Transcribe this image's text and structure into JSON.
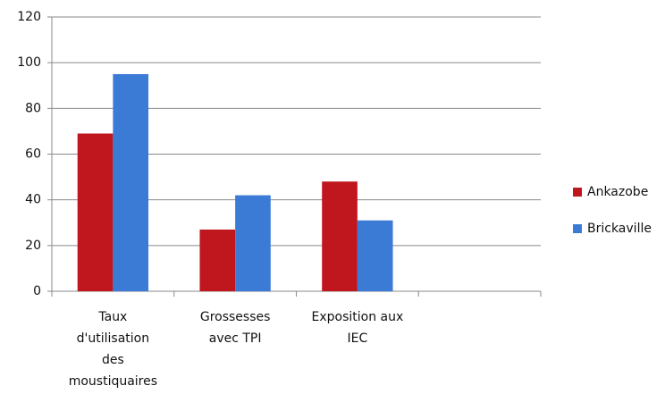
{
  "chart_data": {
    "type": "bar",
    "categories": [
      "Taux d'utilisation des moustiquaires",
      "Grossesses avec TPI",
      "Exposition aux IEC",
      null
    ],
    "series": [
      {
        "name": "Ankazobe",
        "color": "#c0161e",
        "values": [
          69,
          27,
          48,
          null
        ]
      },
      {
        "name": "Brickaville",
        "color": "#3b7bd6",
        "values": [
          95,
          42,
          31,
          null
        ]
      }
    ],
    "ylim": [
      0,
      120
    ],
    "yticks": [
      0,
      20,
      40,
      60,
      80,
      100,
      120
    ],
    "grid": true,
    "legend": "right"
  }
}
